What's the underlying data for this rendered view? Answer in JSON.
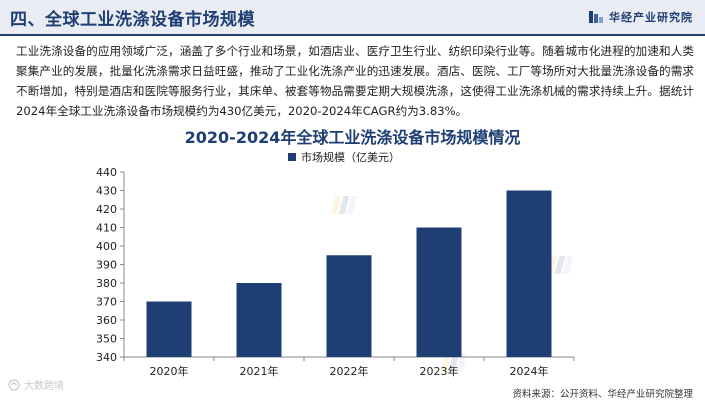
{
  "header": {
    "title": "四、全球工业洗涤设备市场规模",
    "brand": "华经产业研究院"
  },
  "paragraph": "工业洗涤设备的应用领域广泛，涵盖了多个行业和场景，如酒店业、医疗卫生行业、纺织印染行业等。随着城市化进程的加速和人类聚集产业的发展，批量化洗涤需求日益旺盛，推动了工业化洗涤产业的迅速发展。酒店、医院、工厂等场所对大批量洗涤设备的需求不断增加，特别是酒店和医院等服务行业，其床单、被套等物品需要定期大规模洗涤，这使得工业洗涤机械的需求持续上升。据统计2024年全球工业洗涤设备市场规模约为430亿美元，2020-2024年CAGR约为3.83%。",
  "chart_data": {
    "type": "bar",
    "title": "2020-2024年全球工业洗涤设备市场规模情况",
    "categories": [
      "2020年",
      "2021年",
      "2022年",
      "2023年",
      "2024年"
    ],
    "series": [
      {
        "name": "市场规模（亿美元）",
        "values": [
          370,
          380,
          395,
          410,
          430
        ]
      }
    ],
    "ylim": [
      340,
      440
    ],
    "yticks": [
      340,
      350,
      360,
      370,
      380,
      390,
      400,
      410,
      420,
      430,
      440
    ],
    "legend_position": "top-center",
    "grid": false,
    "bar_color": "#1f3e73"
  },
  "source": "资料来源：公开资料、华经产业研究院整理",
  "watermarks": {
    "bottom_left": "大数跨境"
  }
}
